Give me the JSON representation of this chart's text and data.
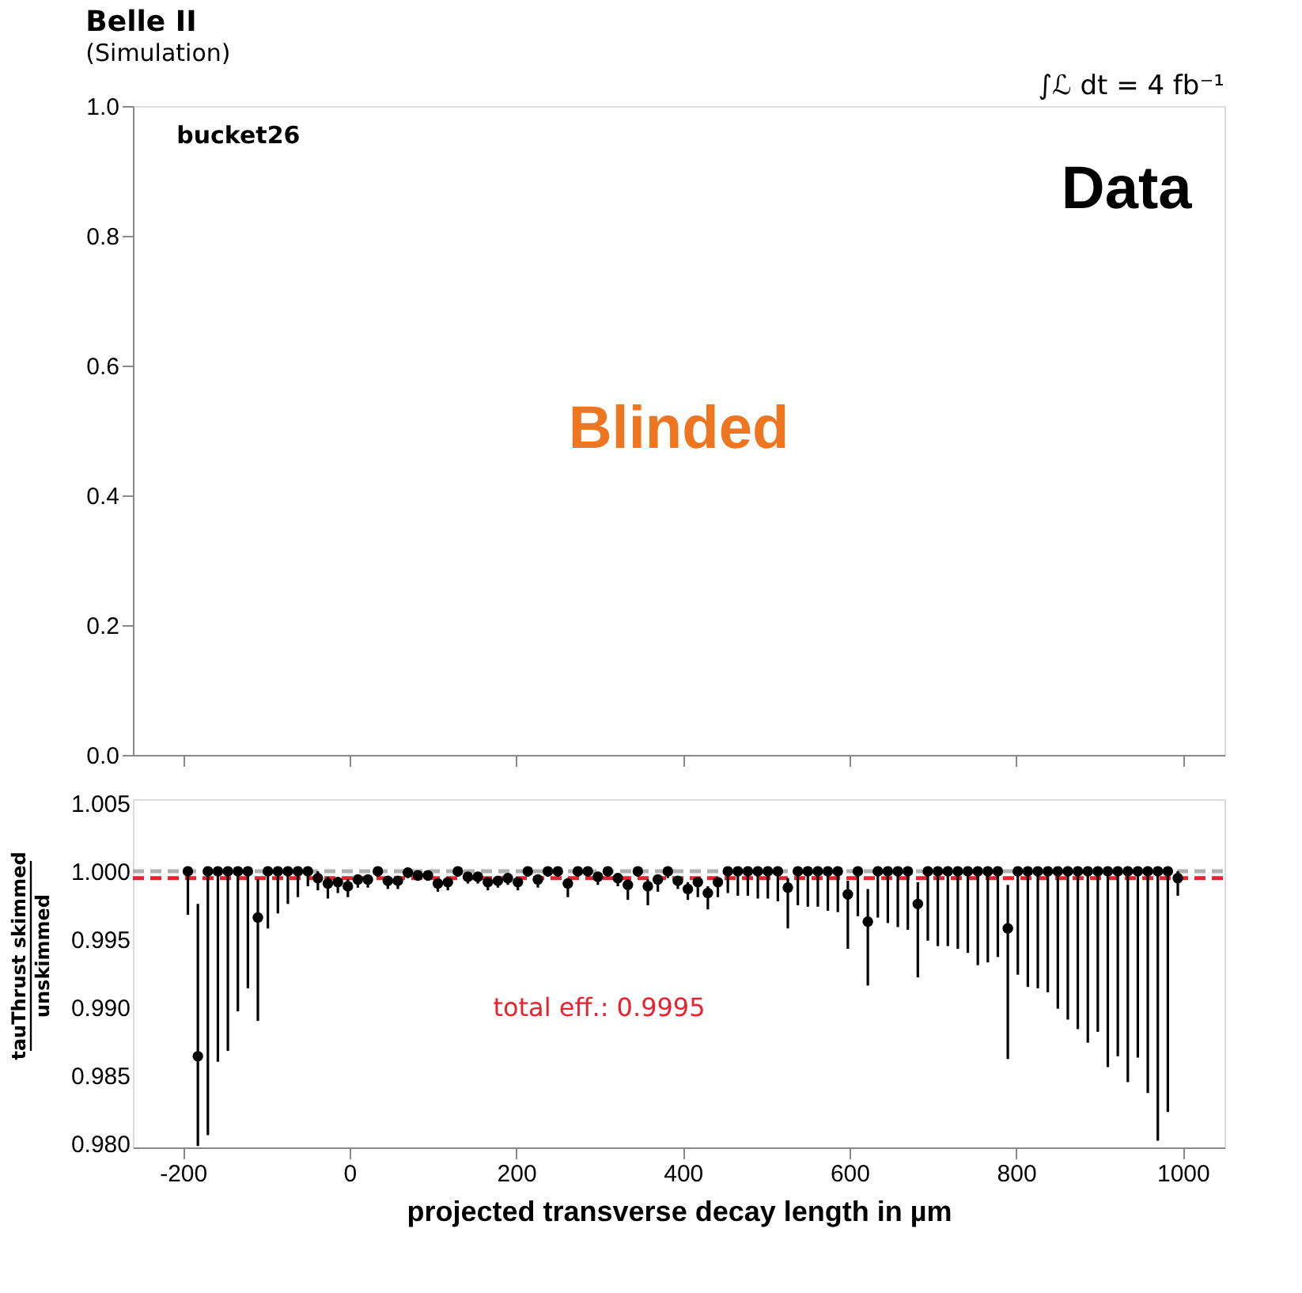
{
  "chart_data": [
    {
      "type": "scatter",
      "title": "Belle II",
      "subtitle": "(Simulation)",
      "annotations": [
        "bucket26",
        "Data",
        "Blinded",
        "∫ℒ dt = 4 fb⁻¹"
      ],
      "xlim": [
        -260,
        1050
      ],
      "xticks": [
        -200,
        0,
        200,
        400,
        600,
        800,
        1000
      ],
      "ylim": [
        0,
        1
      ],
      "yticks": [
        {
          "value": 0,
          "label": "0.0"
        },
        {
          "value": 0.2,
          "label": "0.2"
        },
        {
          "value": 0.4,
          "label": "0.4"
        },
        {
          "value": 0.6,
          "label": "0.6"
        },
        {
          "value": 0.8,
          "label": "0.8"
        },
        {
          "value": 1,
          "label": "1.0"
        }
      ],
      "tick_labels": "y"
    },
    {
      "type": "scatter",
      "xlabel": "projected transverse decay length in µm",
      "ylabel": "tauThrust skimmed\nunskimmed",
      "marker": "circle",
      "color": "#000000",
      "xlim": [
        -260,
        1050
      ],
      "xticks": [
        -200,
        0,
        200,
        400,
        600,
        800,
        1000
      ],
      "ylim": [
        0.9797,
        1.0053
      ],
      "yticks": [
        {
          "value": 0.98,
          "label": "0.980"
        },
        {
          "value": 0.985,
          "label": "0.985"
        },
        {
          "value": 0.99,
          "label": "0.990"
        },
        {
          "value": 0.995,
          "label": "0.995"
        },
        {
          "value": 1.0,
          "label": "1.000"
        },
        {
          "value": 1.005,
          "label": "1.005"
        }
      ],
      "x": [
        -194,
        -182,
        -170,
        -158,
        -146,
        -134,
        -122,
        -110,
        -98,
        -86,
        -74,
        -62,
        -50,
        -38,
        -26,
        -14,
        -2,
        10,
        22,
        34,
        46,
        58,
        70,
        82,
        94,
        106,
        118,
        130,
        142,
        154,
        166,
        178,
        190,
        202,
        214,
        226,
        238,
        250,
        262,
        274,
        286,
        298,
        310,
        322,
        334,
        346,
        358,
        370,
        382,
        394,
        406,
        418,
        430,
        442,
        454,
        466,
        478,
        490,
        502,
        514,
        526,
        538,
        550,
        562,
        574,
        586,
        598,
        610,
        622,
        634,
        646,
        658,
        670,
        682,
        694,
        706,
        718,
        730,
        742,
        754,
        766,
        778,
        790,
        802,
        814,
        826,
        838,
        850,
        862,
        874,
        886,
        898,
        910,
        922,
        934,
        946,
        958,
        970,
        982,
        994
      ],
      "values": [
        1.0,
        0.9864,
        1.0,
        1.0,
        1.0,
        1.0,
        1.0,
        0.9966,
        1.0,
        1.0,
        1.0,
        1.0,
        1.0,
        0.9995,
        0.9991,
        0.9992,
        0.9989,
        0.9994,
        0.9994,
        1.0,
        0.9993,
        0.9993,
        0.9999,
        0.9997,
        0.9997,
        0.9991,
        0.9992,
        1.0,
        0.9996,
        0.9996,
        0.9992,
        0.9993,
        0.9995,
        0.9992,
        1.0,
        0.9994,
        1.0,
        1.0,
        0.9991,
        1.0,
        1.0,
        0.9996,
        1.0,
        0.9995,
        0.999,
        1.0,
        0.9989,
        0.9994,
        1.0,
        0.9993,
        0.9987,
        0.9992,
        0.9984,
        0.9992,
        1.0,
        1.0,
        1.0,
        1.0,
        1.0,
        1.0,
        0.9988,
        1.0,
        1.0,
        1.0,
        1.0,
        1.0,
        0.9983,
        1.0,
        0.9963,
        1.0,
        1.0,
        1.0,
        1.0,
        0.9976,
        1.0,
        1.0,
        1.0,
        1.0,
        1.0,
        1.0,
        1.0,
        1.0,
        0.9958,
        1.0,
        1.0,
        1.0,
        1.0,
        1.0,
        1.0,
        1.0,
        1.0,
        1.0,
        1.0,
        1.0,
        1.0,
        1.0,
        1.0,
        1.0,
        1.0,
        0.9995
      ],
      "errors": [
        [
          0.9968,
          1.0
        ],
        [
          0.9798,
          0.9976
        ],
        [
          0.9806,
          1.0
        ],
        [
          0.986,
          1.0
        ],
        [
          0.9868,
          1.0
        ],
        [
          0.9897,
          1.0
        ],
        [
          0.9914,
          1.0
        ],
        [
          0.989,
          0.9994
        ],
        [
          0.9958,
          1.0
        ],
        [
          0.9969,
          1.0
        ],
        [
          0.9976,
          1.0
        ],
        [
          0.9981,
          1.0
        ],
        [
          0.9989,
          1.0
        ],
        [
          0.9986,
          1.0
        ],
        [
          0.998,
          0.9996
        ],
        [
          0.9984,
          0.9996
        ],
        [
          0.9981,
          0.9994
        ],
        [
          0.9988,
          0.9997
        ],
        [
          0.9988,
          0.9997
        ],
        [
          0.9996,
          1.0
        ],
        [
          0.9987,
          0.9996
        ],
        [
          0.9987,
          0.9996
        ],
        [
          0.9995,
          1.0
        ],
        [
          0.9993,
          1.0
        ],
        [
          0.9993,
          1.0
        ],
        [
          0.9985,
          0.9994
        ],
        [
          0.9986,
          0.9995
        ],
        [
          0.9996,
          1.0
        ],
        [
          0.9991,
          0.9999
        ],
        [
          0.9991,
          0.9999
        ],
        [
          0.9986,
          0.9995
        ],
        [
          0.9988,
          0.9996
        ],
        [
          0.999,
          0.9998
        ],
        [
          0.9986,
          0.9995
        ],
        [
          0.9996,
          1.0
        ],
        [
          0.9988,
          0.9997
        ],
        [
          0.9996,
          1.0
        ],
        [
          0.9996,
          1.0
        ],
        [
          0.9981,
          0.9995
        ],
        [
          0.9996,
          1.0
        ],
        [
          0.9996,
          1.0
        ],
        [
          0.999,
          0.9999
        ],
        [
          0.9996,
          1.0
        ],
        [
          0.9989,
          0.9998
        ],
        [
          0.9979,
          0.9994
        ],
        [
          0.9996,
          1.0
        ],
        [
          0.9975,
          0.9994
        ],
        [
          0.9985,
          0.9997
        ],
        [
          0.9995,
          1.0
        ],
        [
          0.9987,
          0.9996
        ],
        [
          0.9979,
          0.9992
        ],
        [
          0.9981,
          0.9995
        ],
        [
          0.9972,
          0.9989
        ],
        [
          0.9981,
          0.9995
        ],
        [
          0.9984,
          1.0
        ],
        [
          0.9982,
          1.0
        ],
        [
          0.9982,
          1.0
        ],
        [
          0.998,
          1.0
        ],
        [
          0.998,
          1.0
        ],
        [
          0.9978,
          1.0
        ],
        [
          0.9958,
          0.9995
        ],
        [
          0.9975,
          1.0
        ],
        [
          0.9974,
          1.0
        ],
        [
          0.9974,
          1.0
        ],
        [
          0.9971,
          1.0
        ],
        [
          0.997,
          1.0
        ],
        [
          0.9943,
          0.9993
        ],
        [
          0.9967,
          1.0
        ],
        [
          0.9916,
          0.9987
        ],
        [
          0.9966,
          1.0
        ],
        [
          0.9962,
          1.0
        ],
        [
          0.9959,
          1.0
        ],
        [
          0.9957,
          1.0
        ],
        [
          0.9922,
          0.9992
        ],
        [
          0.9949,
          1.0
        ],
        [
          0.9945,
          1.0
        ],
        [
          0.9945,
          1.0
        ],
        [
          0.9943,
          1.0
        ],
        [
          0.994,
          1.0
        ],
        [
          0.9931,
          1.0
        ],
        [
          0.9933,
          1.0
        ],
        [
          0.9937,
          1.0
        ],
        [
          0.9862,
          0.999
        ],
        [
          0.9924,
          1.0
        ],
        [
          0.9915,
          1.0
        ],
        [
          0.9914,
          1.0
        ],
        [
          0.9911,
          1.0
        ],
        [
          0.9899,
          1.0
        ],
        [
          0.9891,
          1.0
        ],
        [
          0.9884,
          1.0
        ],
        [
          0.9874,
          1.0
        ],
        [
          0.9882,
          1.0
        ],
        [
          0.9856,
          1.0
        ],
        [
          0.9864,
          1.0
        ],
        [
          0.9845,
          1.0
        ],
        [
          0.9863,
          1.0
        ],
        [
          0.9837,
          1.0
        ],
        [
          0.9802,
          1.0
        ],
        [
          0.9823,
          1.0
        ],
        [
          0.9982,
          1.0
        ]
      ],
      "ref_lines": [
        {
          "axis": "y",
          "value": 1.0,
          "color": "#b0b0b0",
          "line_style": "dashed"
        },
        {
          "axis": "y",
          "value": 0.9995,
          "label": "total eff.: 0.9995",
          "color": "#e8222e",
          "line_style": "dashed"
        }
      ]
    }
  ]
}
